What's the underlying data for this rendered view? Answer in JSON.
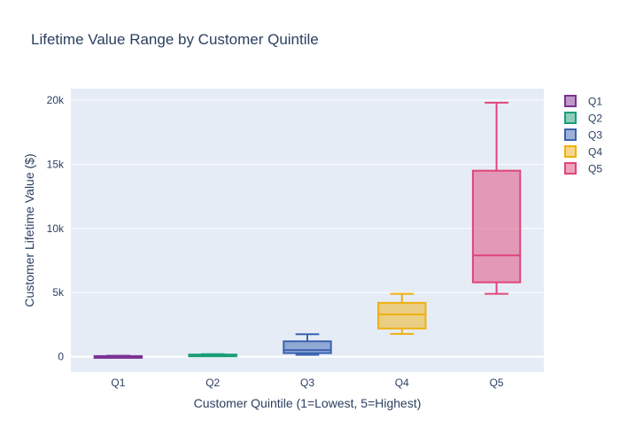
{
  "chart_data": {
    "type": "box",
    "title": "Lifetime Value Range by Customer Quintile",
    "xlabel": "Customer Quintile (1=Lowest, 5=Highest)",
    "ylabel": "Customer Lifetime Value ($)",
    "categories": [
      "Q1",
      "Q2",
      "Q3",
      "Q4",
      "Q5"
    ],
    "y_ticks": [
      0,
      5000,
      10000,
      15000,
      20000
    ],
    "y_tick_labels": [
      "0",
      "5k",
      "10k",
      "15k",
      "20k"
    ],
    "ylim": [
      -1200,
      20900
    ],
    "grid": true,
    "legend_position": "top-right",
    "series": [
      {
        "name": "Q1",
        "color": "#7B3294",
        "min": 0,
        "q1": 10,
        "median": 30,
        "q3": 50,
        "max": 80
      },
      {
        "name": "Q2",
        "color": "#1a9e77",
        "min": 80,
        "q1": 100,
        "median": 140,
        "q3": 170,
        "max": 200
      },
      {
        "name": "Q3",
        "color": "#3b63b1",
        "min": 150,
        "q1": 280,
        "median": 520,
        "q3": 1200,
        "max": 1750
      },
      {
        "name": "Q4",
        "color": "#eeb010",
        "min": 1780,
        "q1": 2200,
        "median": 3300,
        "q3": 4200,
        "max": 4900
      },
      {
        "name": "Q5",
        "color": "#e0457a",
        "min": 4900,
        "q1": 5800,
        "median": 7900,
        "q3": 14500,
        "max": 19800
      }
    ]
  }
}
